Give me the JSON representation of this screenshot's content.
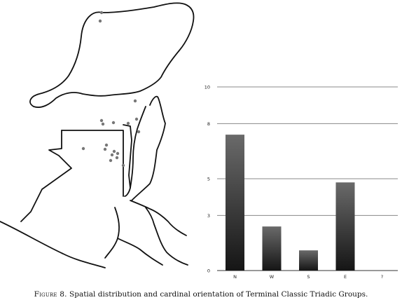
{
  "caption": {
    "label": "Figure 8.",
    "text": "Spatial distribution and cardinal orientation of Terminal Classic Triadic Groups."
  },
  "map": {
    "site_marker_color": "#777777",
    "line_color": "#111111"
  },
  "chart_data": {
    "type": "bar",
    "categories": [
      "N",
      "W",
      "S",
      "E",
      "?"
    ],
    "values": [
      7.4,
      2.4,
      1.1,
      4.8,
      0
    ],
    "yticks": [
      0,
      3,
      5,
      8,
      10
    ],
    "ylim": [
      0,
      10
    ],
    "grid": true,
    "title": "",
    "xlabel": "",
    "ylabel": "",
    "bar_color_top": "#6a6a6a",
    "bar_color_bottom": "#151515"
  }
}
